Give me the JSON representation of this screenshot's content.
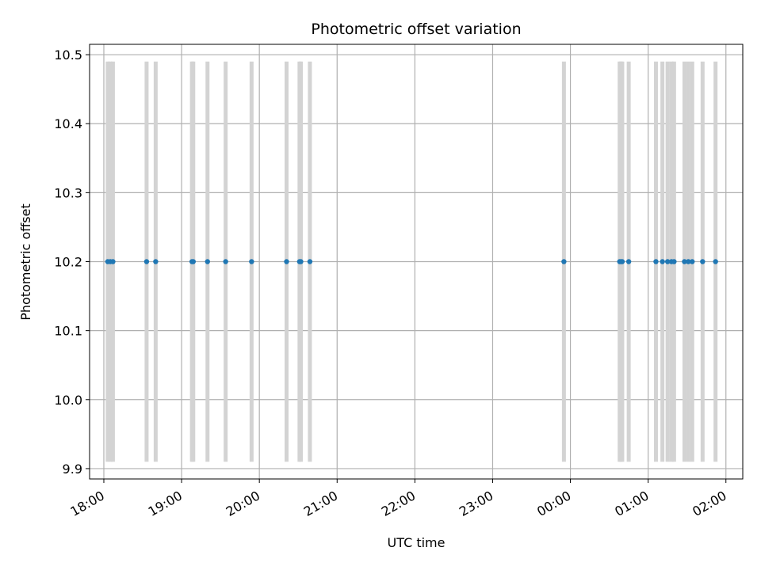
{
  "chart_data": {
    "type": "scatter",
    "title": "Photometric offset variation",
    "xlabel": "UTC time",
    "ylabel": "Photometric offset",
    "x_axis_kind": "time",
    "xlim": [
      "17:49",
      "02:13"
    ],
    "ylim": [
      9.885,
      10.515
    ],
    "x_ticks": [
      "18:00",
      "19:00",
      "20:00",
      "21:00",
      "22:00",
      "23:00",
      "00:00",
      "01:00",
      "02:00"
    ],
    "y_ticks": [
      9.9,
      10.0,
      10.1,
      10.2,
      10.3,
      10.4,
      10.5
    ],
    "y_tick_labels": [
      "9.9",
      "10.0",
      "10.1",
      "10.2",
      "10.3",
      "10.4",
      "10.5"
    ],
    "grid": true,
    "colors": {
      "points": "#1f77b4",
      "error_bars": "#d3d3d3",
      "grid": "#b0b0b0"
    },
    "error_bar": {
      "low": 9.91,
      "high": 10.49
    },
    "series": [
      {
        "x": [
          "18:03",
          "18:05",
          "18:07",
          "18:33",
          "18:40",
          "19:08",
          "19:09",
          "19:20",
          "19:34",
          "19:54",
          "20:21",
          "20:31",
          "20:32",
          "20:39",
          "23:55",
          "00:38",
          "00:39",
          "00:40",
          "00:45",
          "01:06",
          "01:11",
          "01:15",
          "01:18",
          "01:20",
          "01:28",
          "01:31",
          "01:34",
          "01:42",
          "01:52"
        ],
        "y": [
          10.2,
          10.2,
          10.2,
          10.2,
          10.2,
          10.2,
          10.2,
          10.2,
          10.2,
          10.2,
          10.2,
          10.2,
          10.2,
          10.2,
          10.2,
          10.2,
          10.2,
          10.2,
          10.2,
          10.2,
          10.2,
          10.2,
          10.2,
          10.2,
          10.2,
          10.2,
          10.2,
          10.2,
          10.2
        ]
      }
    ]
  }
}
